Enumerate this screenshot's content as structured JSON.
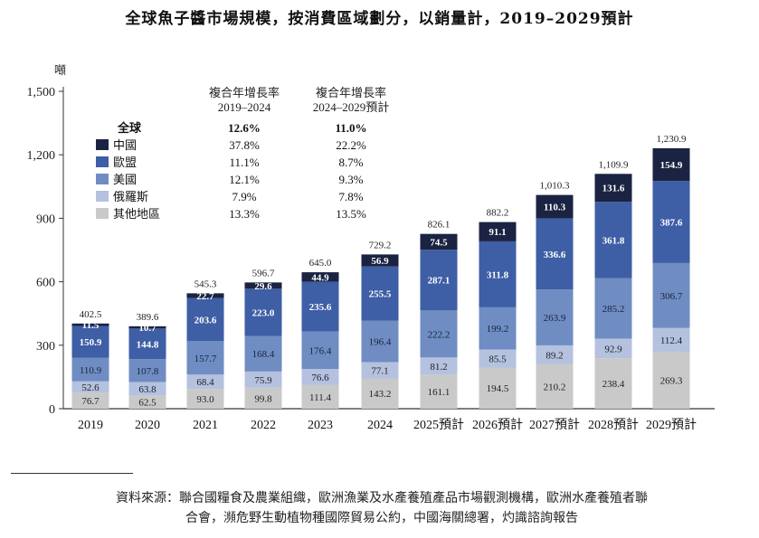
{
  "title": "全球魚子醬市場規模，按消費區域劃分，以銷量計，2019–2029預計",
  "source": [
    "資料來源：聯合國糧食及農業組織，歐洲漁業及水產養殖產品市場觀測機構，歐洲水產養殖者聯",
    "合會，瀕危野生動植物種國際貿易公約，中國海關總署，灼識諮詢報告"
  ],
  "chart_data": {
    "type": "bar",
    "stacked": true,
    "title": "全球魚子醬市場規模，按消費區域劃分，以銷量計，2019–2029預計",
    "ylabel": "噸",
    "ylim": [
      0,
      1500
    ],
    "yticks": [
      "0",
      "300",
      "600",
      "900",
      "1,200",
      "1,500"
    ],
    "ytick_values": [
      0,
      300,
      600,
      900,
      1200,
      1500
    ],
    "categories": [
      "2019",
      "2020",
      "2021",
      "2022",
      "2023",
      "2024",
      "2025預計",
      "2026預計",
      "2027預計",
      "2028預計",
      "2029預計"
    ],
    "totals": [
      "402.5",
      "389.6",
      "545.3",
      "596.7",
      "645.0",
      "729.2",
      "826.1",
      "882.2",
      "1,010.3",
      "1,109.9",
      "1,230.9"
    ],
    "series": [
      {
        "name": "其他地區",
        "color": "#c9c9c9",
        "text": "#222",
        "values": [
          76.7,
          62.5,
          93.0,
          99.8,
          111.4,
          143.2,
          161.1,
          194.5,
          210.2,
          238.4,
          269.3
        ]
      },
      {
        "name": "俄羅斯",
        "color": "#b4c1df",
        "text": "#222",
        "values": [
          52.6,
          63.8,
          68.4,
          75.9,
          76.6,
          77.1,
          81.2,
          85.5,
          89.2,
          92.9,
          112.4
        ]
      },
      {
        "name": "美國",
        "color": "#6f8dc2",
        "text": "#1a2340",
        "values": [
          110.9,
          107.8,
          157.7,
          168.4,
          176.4,
          196.4,
          222.2,
          199.2,
          263.9,
          285.2,
          306.7
        ]
      },
      {
        "name": "歐盟",
        "color": "#3e5ea5",
        "text": "#fff",
        "values": [
          150.9,
          144.8,
          203.6,
          223.0,
          235.6,
          255.5,
          287.1,
          311.8,
          336.6,
          361.8,
          387.6
        ]
      },
      {
        "name": "中國",
        "color": "#1b2342",
        "text": "#fff",
        "values": [
          11.5,
          10.7,
          22.7,
          29.6,
          44.9,
          56.9,
          74.5,
          91.1,
          110.3,
          131.6,
          154.9
        ]
      }
    ],
    "legend": {
      "headers": [
        "複合年增長率\n2019–2024",
        "複合年增長率\n2024–2029預計"
      ],
      "rows": [
        {
          "name": "全球",
          "cagr1": "12.6%",
          "cagr2": "11.0%",
          "bold": true
        },
        {
          "name": "中國",
          "cagr1": "37.8%",
          "cagr2": "22.2%"
        },
        {
          "name": "歐盟",
          "cagr1": "11.1%",
          "cagr2": "8.7%"
        },
        {
          "name": "美國",
          "cagr1": "12.1%",
          "cagr2": "9.3%"
        },
        {
          "name": "俄羅斯",
          "cagr1": "7.9%",
          "cagr2": "7.8%"
        },
        {
          "name": "其他地區",
          "cagr1": "13.3%",
          "cagr2": "13.5%"
        }
      ],
      "placement": "top-left"
    }
  }
}
